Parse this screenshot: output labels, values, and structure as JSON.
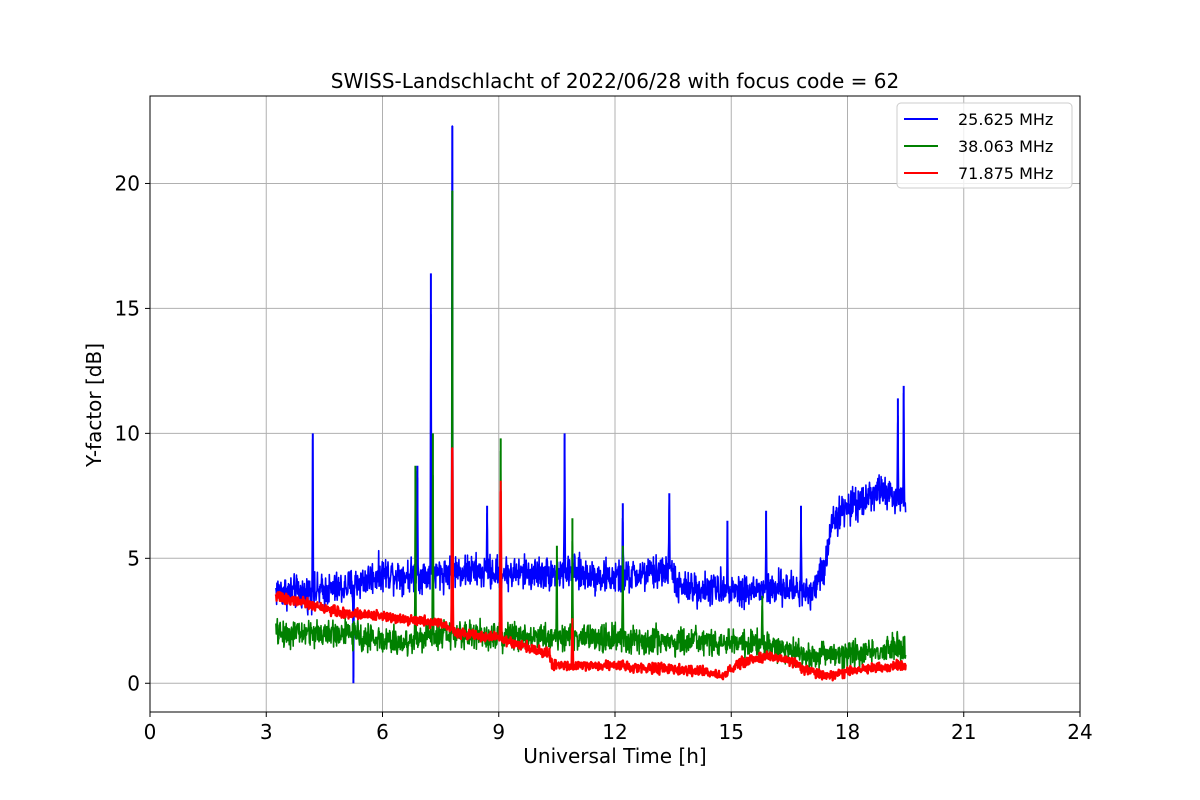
{
  "chart_data": {
    "type": "line",
    "title": "SWISS-Landschlacht of 2022/06/28 with focus code = 62",
    "xlabel": "Universal Time [h]",
    "ylabel": "Y-factor [dB]",
    "xlim": [
      0,
      24
    ],
    "ylim": [
      -1.15,
      23.5
    ],
    "xticks": [
      0,
      3,
      6,
      9,
      12,
      15,
      18,
      21,
      24
    ],
    "yticks": [
      0,
      5,
      10,
      15,
      20
    ],
    "grid": true,
    "legend_position": "top-right",
    "series": [
      {
        "name": "25.625 MHz",
        "color": "#0000ff",
        "noise": 0.55,
        "points": [
          [
            3.25,
            3.7
          ],
          [
            4.0,
            3.6
          ],
          [
            5.0,
            3.8
          ],
          [
            6.0,
            4.4
          ],
          [
            7.0,
            4.3
          ],
          [
            8.0,
            4.5
          ],
          [
            9.0,
            4.4
          ],
          [
            10.0,
            4.4
          ],
          [
            11.0,
            4.4
          ],
          [
            12.0,
            4.2
          ],
          [
            13.0,
            4.4
          ],
          [
            13.5,
            4.6
          ],
          [
            13.6,
            3.8
          ],
          [
            14.5,
            3.8
          ],
          [
            15.5,
            3.7
          ],
          [
            16.5,
            3.8
          ],
          [
            17.0,
            3.6
          ],
          [
            17.4,
            4.5
          ],
          [
            17.6,
            6.6
          ],
          [
            18.5,
            7.5
          ],
          [
            19.0,
            7.7
          ],
          [
            19.5,
            7.0
          ]
        ],
        "spikes": [
          [
            4.2,
            10.0
          ],
          [
            5.25,
            0.0
          ],
          [
            6.9,
            8.7
          ],
          [
            7.25,
            16.4
          ],
          [
            7.8,
            22.3
          ],
          [
            8.7,
            7.1
          ],
          [
            9.05,
            6.8
          ],
          [
            10.7,
            10.0
          ],
          [
            12.2,
            7.2
          ],
          [
            13.4,
            7.6
          ],
          [
            14.9,
            6.5
          ],
          [
            15.9,
            6.9
          ],
          [
            16.8,
            7.1
          ],
          [
            19.3,
            11.4
          ],
          [
            19.45,
            11.9
          ]
        ]
      },
      {
        "name": "38.063 MHz",
        "color": "#008000",
        "noise": 0.45,
        "points": [
          [
            3.25,
            2.0
          ],
          [
            5.0,
            2.0
          ],
          [
            6.5,
            1.6
          ],
          [
            7.5,
            2.0
          ],
          [
            9.0,
            1.9
          ],
          [
            10.0,
            1.9
          ],
          [
            11.5,
            1.8
          ],
          [
            13.0,
            1.7
          ],
          [
            15.0,
            1.6
          ],
          [
            16.0,
            1.5
          ],
          [
            17.0,
            1.1
          ],
          [
            18.0,
            1.2
          ],
          [
            19.5,
            1.4
          ]
        ],
        "spikes": [
          [
            6.85,
            8.7
          ],
          [
            7.3,
            10.0
          ],
          [
            7.8,
            19.7
          ],
          [
            9.05,
            9.8
          ],
          [
            10.5,
            5.5
          ],
          [
            10.9,
            6.6
          ],
          [
            12.2,
            5.5
          ],
          [
            15.8,
            3.5
          ]
        ]
      },
      {
        "name": "71.875 MHz",
        "color": "#ff0000",
        "noise": 0.16,
        "points": [
          [
            3.25,
            3.5
          ],
          [
            4.0,
            3.2
          ],
          [
            5.0,
            2.8
          ],
          [
            6.0,
            2.7
          ],
          [
            7.0,
            2.5
          ],
          [
            7.5,
            2.4
          ],
          [
            8.0,
            2.0
          ],
          [
            9.0,
            1.8
          ],
          [
            10.0,
            1.3
          ],
          [
            10.3,
            1.2
          ],
          [
            10.4,
            0.7
          ],
          [
            12.0,
            0.7
          ],
          [
            13.0,
            0.6
          ],
          [
            14.0,
            0.5
          ],
          [
            14.8,
            0.3
          ],
          [
            15.2,
            0.8
          ],
          [
            16.0,
            1.1
          ],
          [
            16.5,
            0.9
          ],
          [
            17.0,
            0.5
          ],
          [
            17.5,
            0.3
          ],
          [
            18.5,
            0.6
          ],
          [
            19.5,
            0.7
          ]
        ],
        "spikes": [
          [
            7.8,
            9.4
          ],
          [
            9.05,
            8.1
          ],
          [
            10.9,
            2.6
          ]
        ]
      }
    ]
  }
}
